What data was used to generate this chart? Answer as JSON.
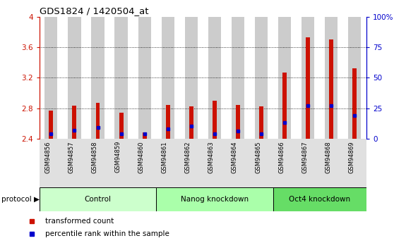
{
  "title": "GDS1824 / 1420504_at",
  "samples": [
    "GSM94856",
    "GSM94857",
    "GSM94858",
    "GSM94859",
    "GSM94860",
    "GSM94861",
    "GSM94862",
    "GSM94863",
    "GSM94864",
    "GSM94865",
    "GSM94866",
    "GSM94867",
    "GSM94868",
    "GSM94869"
  ],
  "transformed_count": [
    2.77,
    2.83,
    2.87,
    2.74,
    2.48,
    2.84,
    2.82,
    2.9,
    2.84,
    2.82,
    3.27,
    3.73,
    3.7,
    3.32
  ],
  "percentile_rank": [
    4,
    7,
    9,
    4,
    4,
    8,
    10,
    4,
    6,
    4,
    13,
    27,
    27,
    19
  ],
  "groups": [
    {
      "label": "Control",
      "start": 0,
      "end": 4,
      "color": "#ccffcc"
    },
    {
      "label": "Nanog knockdown",
      "start": 5,
      "end": 9,
      "color": "#aaffaa"
    },
    {
      "label": "Oct4 knockdown",
      "start": 10,
      "end": 13,
      "color": "#66dd66"
    }
  ],
  "ylim_left": [
    2.4,
    4.0
  ],
  "ylim_right": [
    0,
    100
  ],
  "yticks_left": [
    2.4,
    2.8,
    3.2,
    3.6,
    4.0
  ],
  "ytick_labels_left": [
    "2.4",
    "2.8",
    "3.2",
    "3.6",
    "4"
  ],
  "yticks_right": [
    0,
    25,
    50,
    75,
    100
  ],
  "ytick_labels_right": [
    "0",
    "25",
    "50",
    "75",
    "100%"
  ],
  "bar_color": "#cc1100",
  "dot_color": "#0000cc",
  "background_bar": "#cccccc",
  "left_axis_color": "#cc1100",
  "right_axis_color": "#0000cc",
  "legend_items": [
    {
      "label": "transformed count",
      "color": "#cc1100"
    },
    {
      "label": "percentile rank within the sample",
      "color": "#0000cc"
    }
  ]
}
